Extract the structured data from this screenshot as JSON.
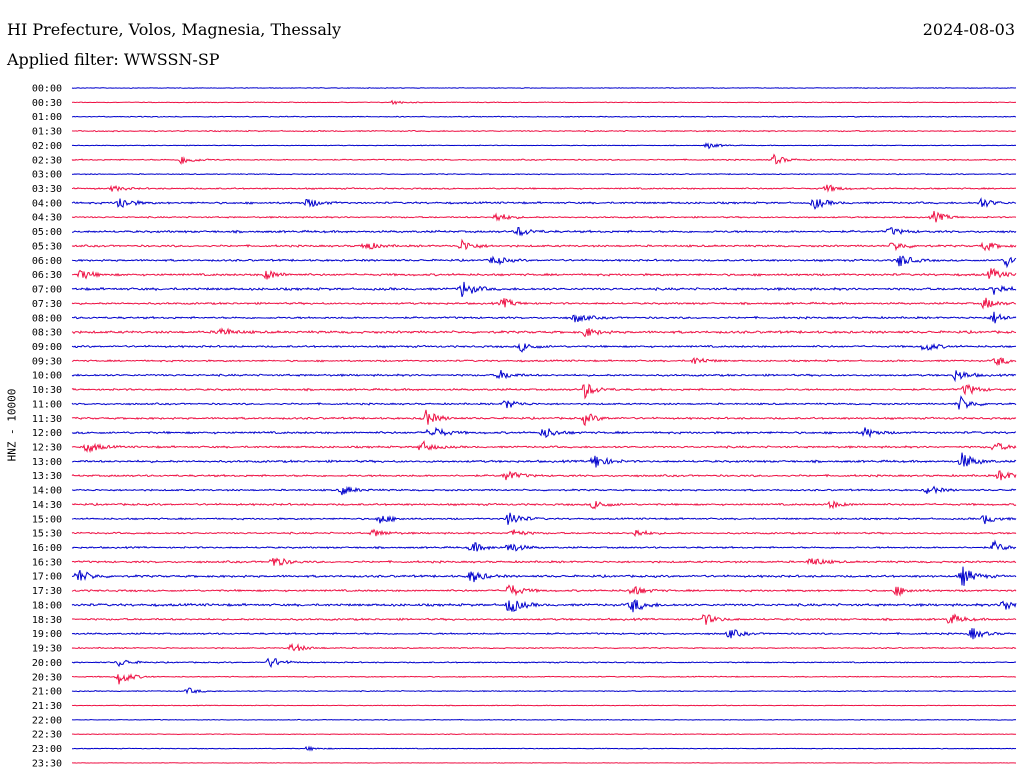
{
  "header": {
    "title": "HI Prefecture, Volos, Magnesia, Thessaly",
    "date": "2024-08-03",
    "filter": "Applied filter: WWSSN-SP"
  },
  "chart_data": {
    "type": "line",
    "ylabel": "HNZ - 10000",
    "row_labels": [
      "00:00",
      "00:30",
      "01:00",
      "01:30",
      "02:00",
      "02:30",
      "03:00",
      "03:30",
      "04:00",
      "04:30",
      "05:00",
      "05:30",
      "06:00",
      "06:30",
      "07:00",
      "07:30",
      "08:00",
      "08:30",
      "09:00",
      "09:30",
      "10:00",
      "10:30",
      "11:00",
      "11:30",
      "12:00",
      "12:30",
      "13:00",
      "13:30",
      "14:00",
      "14:30",
      "15:00",
      "15:30",
      "16:00",
      "16:30",
      "17:00",
      "17:30",
      "18:00",
      "18:30",
      "19:00",
      "19:30",
      "20:00",
      "20:30",
      "21:00",
      "21:30",
      "22:00",
      "22:30",
      "23:00",
      "23:30"
    ],
    "colors": [
      "#0000cc",
      "#ee1144"
    ],
    "x_range_minutes": [
      0,
      30
    ],
    "noise_level": [
      0.3,
      0.3,
      0.4,
      0.5,
      0.3,
      0.5,
      0.4,
      0.6,
      0.8,
      0.6,
      0.9,
      0.8,
      0.8,
      0.9,
      1.0,
      0.8,
      0.8,
      1.0,
      0.8,
      0.7,
      0.8,
      0.8,
      0.7,
      0.8,
      0.9,
      0.8,
      0.9,
      0.8,
      0.7,
      0.8,
      0.7,
      0.7,
      0.7,
      0.8,
      0.9,
      0.8,
      1.0,
      0.8,
      0.7,
      0.5,
      0.5,
      0.4,
      0.4,
      0.3,
      0.3,
      0.3,
      0.3,
      0.2
    ],
    "events": [
      {
        "row": 1,
        "minute": 10.2,
        "amplitude": 2
      },
      {
        "row": 4,
        "minute": 20.2,
        "amplitude": 3
      },
      {
        "row": 5,
        "minute": 3.5,
        "amplitude": 5
      },
      {
        "row": 5,
        "minute": 22.3,
        "amplitude": 5
      },
      {
        "row": 7,
        "minute": 1.3,
        "amplitude": 3
      },
      {
        "row": 7,
        "minute": 24.0,
        "amplitude": 4
      },
      {
        "row": 8,
        "minute": 1.5,
        "amplitude": 7
      },
      {
        "row": 8,
        "minute": 7.5,
        "amplitude": 5
      },
      {
        "row": 8,
        "minute": 23.6,
        "amplitude": 6
      },
      {
        "row": 8,
        "minute": 28.9,
        "amplitude": 5
      },
      {
        "row": 9,
        "minute": 13.5,
        "amplitude": 5
      },
      {
        "row": 9,
        "minute": 27.4,
        "amplitude": 6
      },
      {
        "row": 10,
        "minute": 14.2,
        "amplitude": 5
      },
      {
        "row": 10,
        "minute": 26.0,
        "amplitude": 4
      },
      {
        "row": 11,
        "minute": 9.3,
        "amplitude": 5
      },
      {
        "row": 11,
        "minute": 12.4,
        "amplitude": 6
      },
      {
        "row": 11,
        "minute": 26.1,
        "amplitude": 5
      },
      {
        "row": 11,
        "minute": 29.0,
        "amplitude": 5
      },
      {
        "row": 12,
        "minute": 13.4,
        "amplitude": 5
      },
      {
        "row": 12,
        "minute": 26.3,
        "amplitude": 7
      },
      {
        "row": 12,
        "minute": 29.7,
        "amplitude": 6
      },
      {
        "row": 13,
        "minute": 0.3,
        "amplitude": 5
      },
      {
        "row": 13,
        "minute": 6.2,
        "amplitude": 5
      },
      {
        "row": 13,
        "minute": 29.2,
        "amplitude": 6
      },
      {
        "row": 14,
        "minute": 12.4,
        "amplitude": 9
      },
      {
        "row": 14,
        "minute": 29.3,
        "amplitude": 6
      },
      {
        "row": 15,
        "minute": 13.7,
        "amplitude": 5
      },
      {
        "row": 15,
        "minute": 29.0,
        "amplitude": 6
      },
      {
        "row": 16,
        "minute": 16.0,
        "amplitude": 5
      },
      {
        "row": 16,
        "minute": 29.3,
        "amplitude": 6
      },
      {
        "row": 17,
        "minute": 4.7,
        "amplitude": 5
      },
      {
        "row": 17,
        "minute": 16.3,
        "amplitude": 5
      },
      {
        "row": 18,
        "minute": 14.3,
        "amplitude": 5
      },
      {
        "row": 18,
        "minute": 27.1,
        "amplitude": 5
      },
      {
        "row": 19,
        "minute": 19.8,
        "amplitude": 4
      },
      {
        "row": 19,
        "minute": 29.4,
        "amplitude": 5
      },
      {
        "row": 20,
        "minute": 13.6,
        "amplitude": 5
      },
      {
        "row": 20,
        "minute": 28.1,
        "amplitude": 6
      },
      {
        "row": 21,
        "minute": 16.3,
        "amplitude": 8
      },
      {
        "row": 21,
        "minute": 28.4,
        "amplitude": 6
      },
      {
        "row": 22,
        "minute": 13.8,
        "amplitude": 5
      },
      {
        "row": 22,
        "minute": 28.2,
        "amplitude": 8
      },
      {
        "row": 23,
        "minute": 11.2,
        "amplitude": 9
      },
      {
        "row": 23,
        "minute": 16.3,
        "amplitude": 6
      },
      {
        "row": 24,
        "minute": 11.4,
        "amplitude": 8
      },
      {
        "row": 24,
        "minute": 15.0,
        "amplitude": 6
      },
      {
        "row": 24,
        "minute": 25.2,
        "amplitude": 5
      },
      {
        "row": 25,
        "minute": 0.5,
        "amplitude": 6
      },
      {
        "row": 25,
        "minute": 11.1,
        "amplitude": 6
      },
      {
        "row": 25,
        "minute": 29.3,
        "amplitude": 5
      },
      {
        "row": 26,
        "minute": 16.6,
        "amplitude": 8
      },
      {
        "row": 26,
        "minute": 28.3,
        "amplitude": 9
      },
      {
        "row": 27,
        "minute": 13.8,
        "amplitude": 6
      },
      {
        "row": 27,
        "minute": 29.5,
        "amplitude": 6
      },
      {
        "row": 28,
        "minute": 8.6,
        "amplitude": 5
      },
      {
        "row": 28,
        "minute": 27.2,
        "amplitude": 5
      },
      {
        "row": 29,
        "minute": 16.6,
        "amplitude": 5
      },
      {
        "row": 29,
        "minute": 24.1,
        "amplitude": 4
      },
      {
        "row": 30,
        "minute": 9.8,
        "amplitude": 5
      },
      {
        "row": 30,
        "minute": 13.9,
        "amplitude": 8
      },
      {
        "row": 30,
        "minute": 29.0,
        "amplitude": 5
      },
      {
        "row": 31,
        "minute": 9.6,
        "amplitude": 4
      },
      {
        "row": 31,
        "minute": 14.0,
        "amplitude": 4
      },
      {
        "row": 31,
        "minute": 17.9,
        "amplitude": 4
      },
      {
        "row": 32,
        "minute": 12.7,
        "amplitude": 6
      },
      {
        "row": 32,
        "minute": 13.9,
        "amplitude": 6
      },
      {
        "row": 32,
        "minute": 29.3,
        "amplitude": 6
      },
      {
        "row": 33,
        "minute": 6.4,
        "amplitude": 6
      },
      {
        "row": 33,
        "minute": 23.5,
        "amplitude": 5
      },
      {
        "row": 34,
        "minute": 0.2,
        "amplitude": 7
      },
      {
        "row": 34,
        "minute": 12.7,
        "amplitude": 7
      },
      {
        "row": 34,
        "minute": 28.3,
        "amplitude": 10
      },
      {
        "row": 35,
        "minute": 13.9,
        "amplitude": 7
      },
      {
        "row": 35,
        "minute": 17.8,
        "amplitude": 6
      },
      {
        "row": 35,
        "minute": 26.2,
        "amplitude": 5
      },
      {
        "row": 36,
        "minute": 13.9,
        "amplitude": 9
      },
      {
        "row": 36,
        "minute": 17.8,
        "amplitude": 8
      },
      {
        "row": 36,
        "minute": 29.6,
        "amplitude": 6
      },
      {
        "row": 37,
        "minute": 20.1,
        "amplitude": 6
      },
      {
        "row": 37,
        "minute": 27.9,
        "amplitude": 6
      },
      {
        "row": 38,
        "minute": 20.9,
        "amplitude": 5
      },
      {
        "row": 38,
        "minute": 28.6,
        "amplitude": 6
      },
      {
        "row": 39,
        "minute": 7.0,
        "amplitude": 5
      },
      {
        "row": 40,
        "minute": 6.3,
        "amplitude": 6
      },
      {
        "row": 40,
        "minute": 1.5,
        "amplitude": 4
      },
      {
        "row": 41,
        "minute": 1.5,
        "amplitude": 8
      },
      {
        "row": 42,
        "minute": 3.7,
        "amplitude": 3
      },
      {
        "row": 46,
        "minute": 7.5,
        "amplitude": 2
      }
    ]
  }
}
